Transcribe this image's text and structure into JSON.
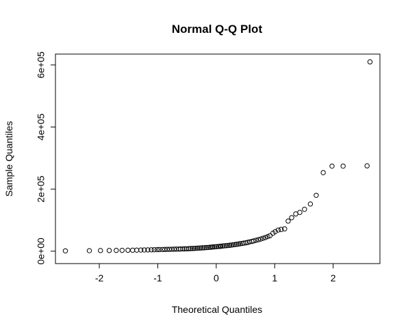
{
  "chart_data": {
    "type": "scatter",
    "title": "Normal Q-Q Plot",
    "xlabel": "Theoretical Quantiles",
    "ylabel": "Sample Quantiles",
    "xlim": [
      -2.75,
      2.8
    ],
    "ylim": [
      -40000,
      635000
    ],
    "x_ticks": [
      -2,
      -1,
      0,
      1,
      2
    ],
    "x_tick_labels": [
      "-2",
      "-1",
      "0",
      "1",
      "2"
    ],
    "y_ticks": [
      0,
      200000,
      400000,
      600000
    ],
    "y_tick_labels": [
      "0e+00",
      "2e+05",
      "4e+05",
      "6e+05"
    ],
    "grid": false,
    "legend": "none",
    "marker": "open-circle",
    "points": [
      [
        -2.58,
        1000
      ],
      [
        -2.17,
        1500
      ],
      [
        -1.98,
        2000
      ],
      [
        -1.83,
        2200
      ],
      [
        -1.71,
        2500
      ],
      [
        -1.61,
        2700
      ],
      [
        -1.51,
        3000
      ],
      [
        -1.43,
        3200
      ],
      [
        -1.36,
        3500
      ],
      [
        -1.29,
        3700
      ],
      [
        -1.23,
        4000
      ],
      [
        -1.17,
        4200
      ],
      [
        -1.11,
        4500
      ],
      [
        -1.06,
        4700
      ],
      [
        -1.01,
        5000
      ],
      [
        -0.97,
        5200
      ],
      [
        -0.92,
        5400
      ],
      [
        -0.88,
        5600
      ],
      [
        -0.84,
        5800
      ],
      [
        -0.8,
        6000
      ],
      [
        -0.76,
        6200
      ],
      [
        -0.72,
        6400
      ],
      [
        -0.68,
        6600
      ],
      [
        -0.64,
        6800
      ],
      [
        -0.61,
        7000
      ],
      [
        -0.57,
        7200
      ],
      [
        -0.54,
        7400
      ],
      [
        -0.51,
        7600
      ],
      [
        -0.47,
        8000
      ],
      [
        -0.44,
        8300
      ],
      [
        -0.41,
        8600
      ],
      [
        -0.38,
        9000
      ],
      [
        -0.35,
        9300
      ],
      [
        -0.32,
        9700
      ],
      [
        -0.29,
        10000
      ],
      [
        -0.26,
        10400
      ],
      [
        -0.23,
        10800
      ],
      [
        -0.2,
        11200
      ],
      [
        -0.17,
        11600
      ],
      [
        -0.14,
        12000
      ],
      [
        -0.11,
        12500
      ],
      [
        -0.08,
        13000
      ],
      [
        -0.06,
        13500
      ],
      [
        -0.03,
        14000
      ],
      [
        0.0,
        14500
      ],
      [
        0.03,
        15000
      ],
      [
        0.06,
        15500
      ],
      [
        0.08,
        16000
      ],
      [
        0.11,
        16600
      ],
      [
        0.14,
        17200
      ],
      [
        0.17,
        17800
      ],
      [
        0.2,
        18400
      ],
      [
        0.23,
        19000
      ],
      [
        0.26,
        19800
      ],
      [
        0.29,
        20600
      ],
      [
        0.32,
        21400
      ],
      [
        0.35,
        22200
      ],
      [
        0.38,
        23000
      ],
      [
        0.41,
        24000
      ],
      [
        0.44,
        25000
      ],
      [
        0.47,
        26000
      ],
      [
        0.51,
        27000
      ],
      [
        0.54,
        28500
      ],
      [
        0.57,
        30000
      ],
      [
        0.61,
        31500
      ],
      [
        0.64,
        33000
      ],
      [
        0.68,
        35000
      ],
      [
        0.72,
        37000
      ],
      [
        0.76,
        39000
      ],
      [
        0.8,
        41500
      ],
      [
        0.84,
        44000
      ],
      [
        0.88,
        47000
      ],
      [
        0.92,
        50000
      ],
      [
        0.97,
        58000
      ],
      [
        1.01,
        63000
      ],
      [
        1.06,
        68000
      ],
      [
        1.11,
        70000
      ],
      [
        1.17,
        72000
      ],
      [
        1.23,
        97000
      ],
      [
        1.29,
        108000
      ],
      [
        1.36,
        120000
      ],
      [
        1.43,
        125000
      ],
      [
        1.51,
        135000
      ],
      [
        1.61,
        152000
      ],
      [
        1.71,
        180000
      ],
      [
        1.83,
        253000
      ],
      [
        1.98,
        274000
      ],
      [
        2.17,
        274000
      ],
      [
        2.58,
        275000
      ],
      [
        2.63,
        610000
      ]
    ]
  }
}
